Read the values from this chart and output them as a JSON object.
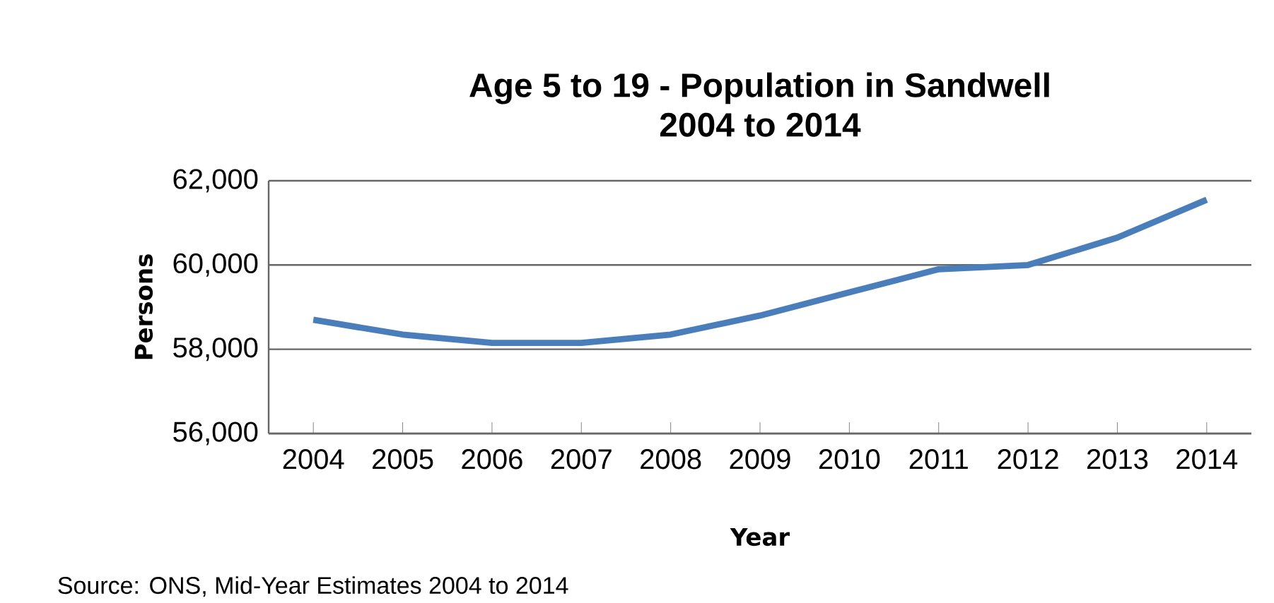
{
  "chart_data": {
    "type": "line",
    "title": "Age 5 to 19 - Population in Sandwell\n2004 to 2014",
    "xlabel": "Year",
    "ylabel": "Persons",
    "categories": [
      "2004",
      "2005",
      "2006",
      "2007",
      "2008",
      "2009",
      "2010",
      "2011",
      "2012",
      "2013",
      "2014"
    ],
    "series": [
      {
        "color": "#4a7ebb",
        "values": [
          58700,
          58350,
          58150,
          58150,
          58350,
          58800,
          59350,
          59900,
          60000,
          60650,
          61550
        ]
      }
    ],
    "ylim": [
      56000,
      62000
    ],
    "yticks": [
      {
        "value": 56000,
        "label": "56,000"
      },
      {
        "value": 58000,
        "label": "58,000"
      },
      {
        "value": 60000,
        "label": "60,000"
      },
      {
        "value": 62000,
        "label": "62,000"
      }
    ],
    "grid": "y",
    "marker": "none",
    "line_style": "solid",
    "annotations": [
      "Source: ONS, Mid-Year Estimates 2004 to 2014"
    ]
  }
}
